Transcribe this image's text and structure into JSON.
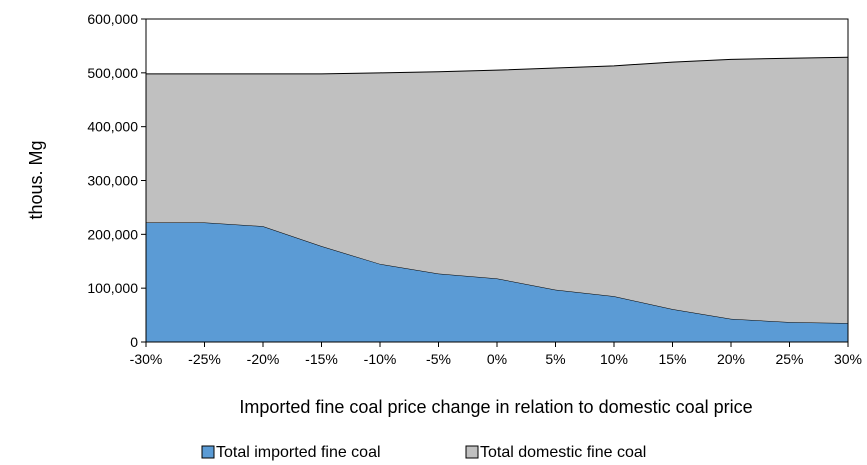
{
  "chart_data": {
    "type": "area",
    "stacked": true,
    "x": [
      "-30%",
      "-25%",
      "-20%",
      "-15%",
      "-10%",
      "-5%",
      "0%",
      "5%",
      "10%",
      "15%",
      "20%",
      "25%",
      "30%"
    ],
    "series": [
      {
        "name": "Total imported fine coal",
        "color": "#5b9bd5",
        "values": [
          222000,
          222000,
          215000,
          178000,
          145000,
          127000,
          118000,
          97000,
          85000,
          61000,
          43000,
          37000,
          35000
        ]
      },
      {
        "name": "Total domestic fine coal",
        "color": "#c0c0c0",
        "values": [
          276000,
          276000,
          283000,
          320000,
          355000,
          375000,
          387000,
          412000,
          428000,
          459000,
          482000,
          490000,
          494000
        ]
      }
    ],
    "ylabel": "thous. Mg",
    "xlabel": "Imported fine coal price change in relation to domestic coal price",
    "ylim": [
      0,
      600000
    ],
    "yticks": [
      0,
      100000,
      200000,
      300000,
      400000,
      500000,
      600000
    ],
    "ytick_labels": [
      "0",
      "100,000",
      "200,000",
      "300,000",
      "400,000",
      "500,000",
      "600,000"
    ],
    "grid": false,
    "legend": "bottom"
  }
}
